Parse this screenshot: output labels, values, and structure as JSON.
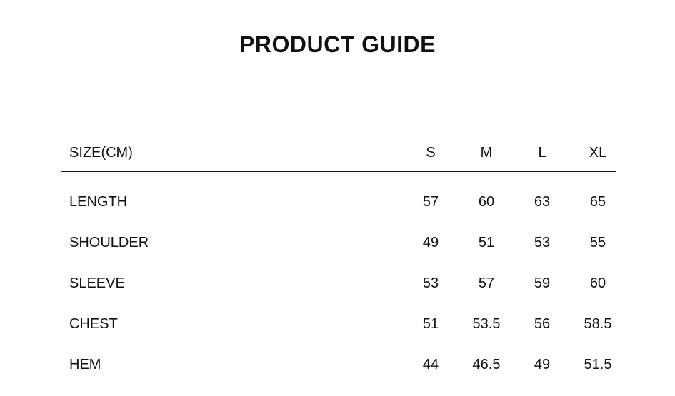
{
  "page": {
    "title": "PRODUCT GUIDE",
    "background_color": "#ffffff",
    "text_color": "#111111",
    "divider_color": "#1a1a1a"
  },
  "size_table": {
    "unit_header": "SIZE(CM)",
    "columns": [
      "S",
      "M",
      "L",
      "XL"
    ],
    "rows": [
      {
        "label": "LENGTH",
        "values": [
          "57",
          "60",
          "63",
          "65"
        ]
      },
      {
        "label": "SHOULDER",
        "values": [
          "49",
          "51",
          "53",
          "55"
        ]
      },
      {
        "label": "SLEEVE",
        "values": [
          "53",
          "57",
          "59",
          "60"
        ]
      },
      {
        "label": "CHEST",
        "values": [
          "51",
          "53.5",
          "56",
          "58.5"
        ]
      },
      {
        "label": "HEM",
        "values": [
          "44",
          "46.5",
          "49",
          "51.5"
        ]
      }
    ]
  }
}
